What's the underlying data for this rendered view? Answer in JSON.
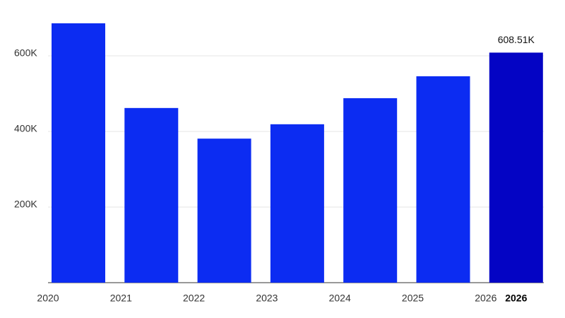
{
  "chart_data": {
    "type": "bar",
    "categories": [
      "2020",
      "2021",
      "2022",
      "2023",
      "2024",
      "2025",
      "2026"
    ],
    "values": [
      686000,
      462000,
      381000,
      419000,
      488000,
      546000,
      608510
    ],
    "value_labels": [
      null,
      null,
      null,
      null,
      null,
      null,
      "608.51K"
    ],
    "colors": [
      "#0c2cf2",
      "#0c2cf2",
      "#0c2cf2",
      "#0c2cf2",
      "#0c2cf2",
      "#0c2cf2",
      "#0404c4"
    ],
    "highlighted_category": "2026",
    "ylim": [
      0,
      700000
    ],
    "yticks": [
      {
        "value": 200000,
        "label": "200K"
      },
      {
        "value": 400000,
        "label": "400K"
      },
      {
        "value": 600000,
        "label": "600K"
      }
    ],
    "grid": true
  }
}
